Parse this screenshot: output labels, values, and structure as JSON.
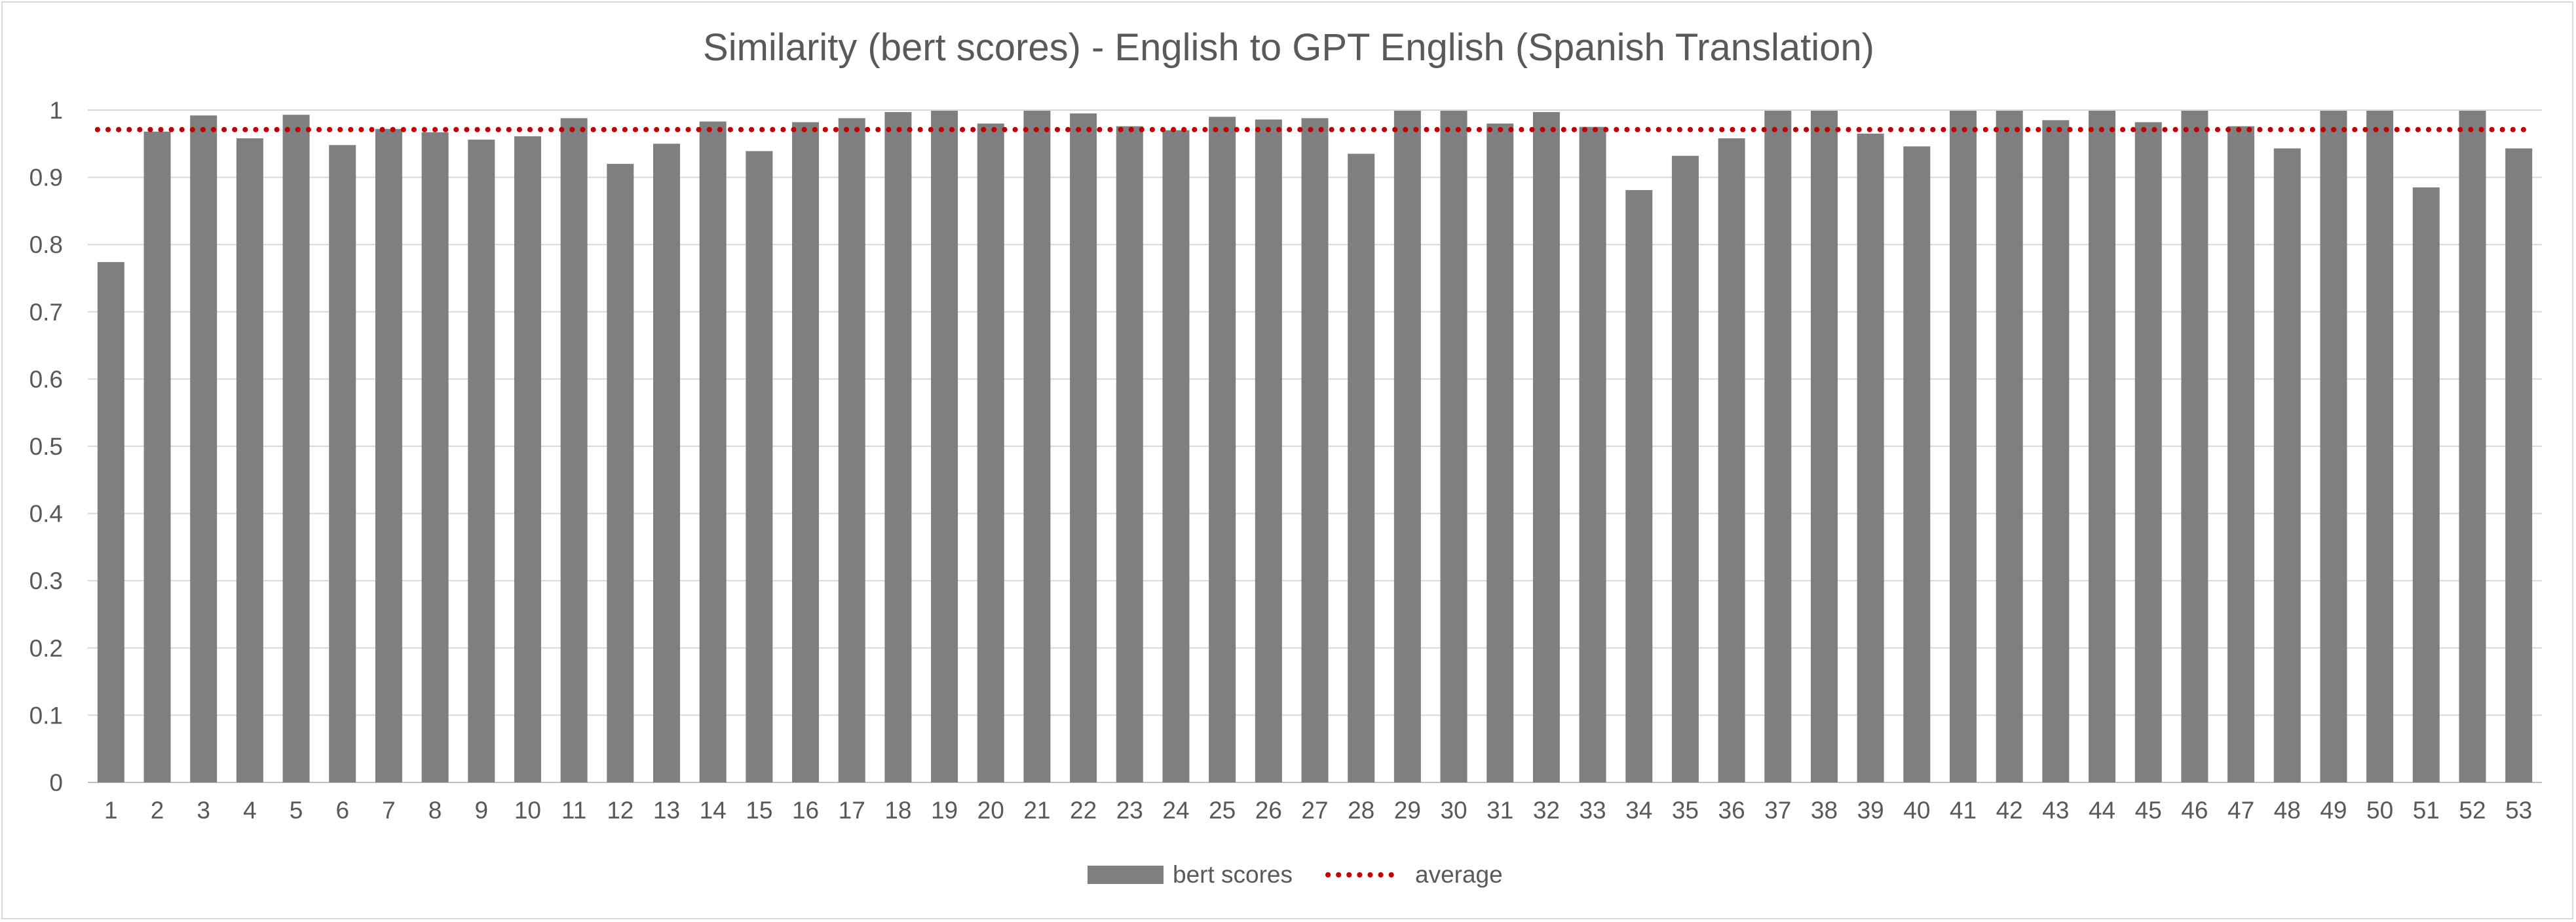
{
  "chart_data": {
    "type": "bar",
    "title": "Similarity (bert scores) - English to GPT English (Spanish Translation)",
    "xlabel": "",
    "ylabel": "",
    "ylim": [
      0,
      1
    ],
    "yticks": [
      "0",
      "0.1",
      "0.2",
      "0.3",
      "0.4",
      "0.5",
      "0.6",
      "0.7",
      "0.8",
      "0.9",
      "1"
    ],
    "categories": [
      "1",
      "2",
      "3",
      "4",
      "5",
      "6",
      "7",
      "8",
      "9",
      "10",
      "11",
      "12",
      "13",
      "14",
      "15",
      "16",
      "17",
      "18",
      "19",
      "20",
      "21",
      "22",
      "23",
      "24",
      "25",
      "26",
      "27",
      "28",
      "29",
      "30",
      "31",
      "32",
      "33",
      "34",
      "35",
      "36",
      "37",
      "38",
      "39",
      "40",
      "41",
      "42",
      "43",
      "44",
      "45",
      "46",
      "47",
      "48",
      "49",
      "50",
      "51",
      "52",
      "53"
    ],
    "series": [
      {
        "name": "bert scores",
        "kind": "bar",
        "color": "#7f7f7f",
        "values": [
          0.774,
          0.968,
          0.992,
          0.958,
          0.993,
          0.948,
          0.972,
          0.967,
          0.956,
          0.961,
          0.988,
          0.92,
          0.95,
          0.983,
          0.939,
          0.982,
          0.988,
          0.997,
          0.999,
          0.98,
          0.999,
          0.995,
          0.976,
          0.97,
          0.99,
          0.986,
          0.988,
          0.935,
          0.999,
          0.999,
          0.98,
          0.997,
          0.975,
          0.881,
          0.932,
          0.958,
          0.999,
          0.999,
          0.965,
          0.946,
          0.999,
          0.999,
          0.985,
          0.999,
          0.982,
          0.999,
          0.976,
          0.943,
          0.999,
          0.999,
          0.885,
          0.999,
          0.943
        ]
      },
      {
        "name": "average",
        "kind": "line",
        "style": "dotted",
        "color": "#c00000",
        "value": 0.971
      }
    ],
    "grid": true,
    "legend_position": "bottom"
  }
}
